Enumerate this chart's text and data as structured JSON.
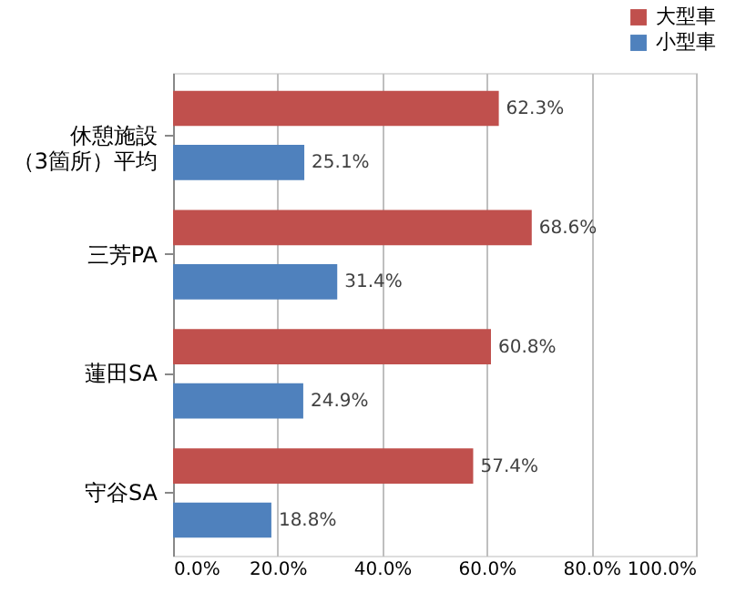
{
  "chart_data": {
    "type": "bar",
    "orientation": "horizontal",
    "categories": [
      "休憩施設（3箇所）平均",
      "三芳PA",
      "蓮田SA",
      "守谷SA"
    ],
    "series": [
      {
        "name": "大型車",
        "color": "#c0504d",
        "values": [
          62.3,
          68.6,
          60.8,
          57.4
        ],
        "value_labels": [
          "62.3%",
          "68.6%",
          "60.8%",
          "57.4%"
        ]
      },
      {
        "name": "小型車",
        "color": "#4f81bd",
        "values": [
          25.1,
          31.4,
          24.9,
          18.8
        ],
        "value_labels": [
          "25.1%",
          "31.4%",
          "24.9%",
          "18.8%"
        ]
      }
    ],
    "xlim": [
      0,
      100
    ],
    "xticks": [
      {
        "value": 0,
        "label": "0.0%"
      },
      {
        "value": 20,
        "label": "20.0%"
      },
      {
        "value": 40,
        "label": "40.0%"
      },
      {
        "value": 60,
        "label": "60.0%"
      },
      {
        "value": 80,
        "label": "80.0%"
      },
      {
        "value": 100,
        "label": "100.0%"
      }
    ],
    "grid": "x",
    "legend": "top right"
  }
}
